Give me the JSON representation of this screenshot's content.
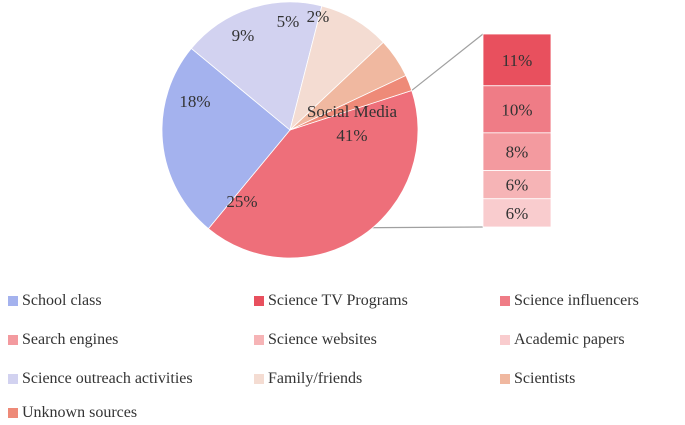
{
  "chart_data": {
    "type": "bar-of-pie",
    "pie": {
      "slices": [
        {
          "name": "Social Media",
          "value": 41,
          "label": "41%",
          "color": "#ee6f7a"
        },
        {
          "name": "School class",
          "value": 25,
          "label": "25%",
          "color": "#a4b2ee"
        },
        {
          "name": "Science outreach activities",
          "value": 18,
          "label": "18%",
          "color": "#d2d2f0"
        },
        {
          "name": "Family/friends",
          "value": 9,
          "label": "9%",
          "color": "#f4dcd2"
        },
        {
          "name": "Scientists",
          "value": 5,
          "label": "5%",
          "color": "#f0b8a0"
        },
        {
          "name": "Unknown sources",
          "value": 2,
          "label": "2%",
          "color": "#ee8a78"
        }
      ]
    },
    "bar": {
      "of": "Social Media",
      "segments": [
        {
          "name": "Science TV Programs",
          "value": 11,
          "label": "11%",
          "color": "#e8505e"
        },
        {
          "name": "Science influencers",
          "value": 10,
          "label": "10%",
          "color": "#ef7c86"
        },
        {
          "name": "Search engines",
          "value": 8,
          "label": "8%",
          "color": "#f39a9f"
        },
        {
          "name": "Science websites",
          "value": 6,
          "label": "6%",
          "color": "#f6b4b6"
        },
        {
          "name": "Academic papers",
          "value": 6,
          "label": "6%",
          "color": "#f9ccce"
        }
      ]
    },
    "legend": {
      "position": "bottom",
      "items": [
        {
          "label": "School class",
          "color": "#a4b2ee"
        },
        {
          "label": "Science TV Programs",
          "color": "#e8505e"
        },
        {
          "label": "Science influencers",
          "color": "#ef7c86"
        },
        {
          "label": "Search engines",
          "color": "#f39a9f"
        },
        {
          "label": "Science websites",
          "color": "#f6b4b6"
        },
        {
          "label": "Academic papers",
          "color": "#f9ccce"
        },
        {
          "label": "Science outreach activities",
          "color": "#d2d2f0"
        },
        {
          "label": "Family/friends",
          "color": "#f4dcd2"
        },
        {
          "label": "Scientists",
          "color": "#f0b8a0"
        },
        {
          "label": "Unknown sources",
          "color": "#ee8a78"
        }
      ]
    }
  }
}
